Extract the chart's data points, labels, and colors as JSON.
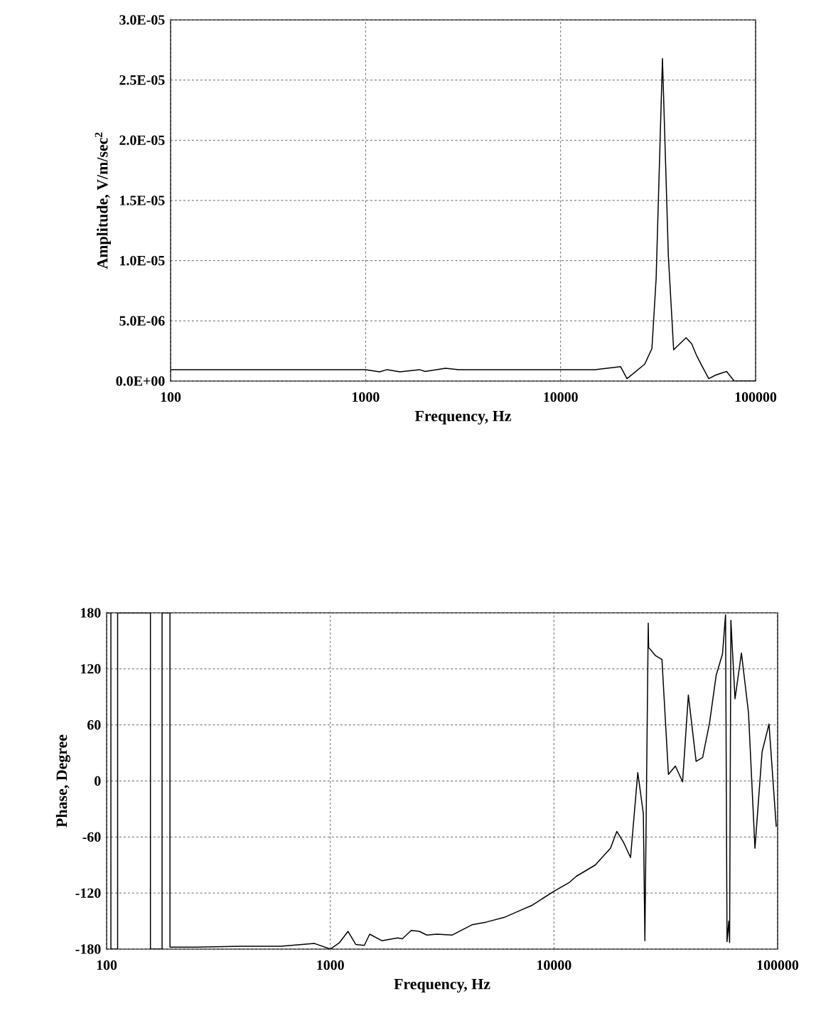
{
  "chart_data": [
    {
      "type": "line",
      "xlabel": "Frequency, Hz",
      "ylabel": "Amplitude, V/m/sec$^{2}$",
      "log": "x",
      "grid": true,
      "xlim": [
        100,
        100000
      ],
      "xticks": [
        100,
        1000,
        10000,
        100000
      ],
      "ylim": [
        0,
        3e-05
      ],
      "yticks": [
        {
          "value": 0,
          "label": "0.0E+00"
        },
        {
          "value": 5e-06,
          "label": "5.0E-06"
        },
        {
          "value": 1e-05,
          "label": "1.0E-05"
        },
        {
          "value": 1.5e-05,
          "label": "1.5E-05"
        },
        {
          "value": 2e-05,
          "label": "2.0E-05"
        },
        {
          "value": 2.5e-05,
          "label": "2.5E-05"
        },
        {
          "value": 3e-05,
          "label": "3.0E-05"
        }
      ],
      "series": [
        {
          "color": "#000000",
          "x": [
            100,
            500,
            1000,
            1180,
            1290,
            1500,
            1890,
            2020,
            2570,
            3000,
            5000,
            10000,
            15000,
            20300,
            21900,
            27000,
            29400,
            30900,
            33300,
            35700,
            38000,
            44000,
            47000,
            49900,
            53300,
            57500,
            62500,
            71000,
            77700,
            100000
          ],
          "values": [
            9.5e-07,
            9.5e-07,
            9.5e-07,
            7.7e-07,
            9.5e-07,
            7.7e-07,
            9.5e-07,
            8e-07,
            1.06e-06,
            9.5e-07,
            9.5e-07,
            9.5e-07,
            9.5e-07,
            1.2e-06,
            2e-07,
            1.4e-06,
            2.7e-06,
            8.5e-06,
            2.68e-05,
            1.04e-05,
            2.6e-06,
            3.6e-06,
            3.1e-06,
            2.1e-06,
            1.2e-06,
            2e-07,
            5e-07,
            8e-07,
            0,
            0
          ]
        }
      ]
    },
    {
      "type": "line",
      "xlabel": "Frequency, Hz",
      "ylabel": "Phase, Degree",
      "log": "x",
      "grid": true,
      "xlim": [
        100,
        100000
      ],
      "xticks": [
        100,
        1000,
        10000,
        100000
      ],
      "ylim": [
        -180,
        180
      ],
      "yticks": [
        -180,
        -120,
        -60,
        0,
        60,
        120,
        180
      ],
      "series": [
        {
          "color": "#000000",
          "x": [
            100,
            104.5,
            104.5,
            112,
            112,
            157,
            157,
            177,
            177,
            192,
            192,
            250,
            400,
            600,
            850,
            1000,
            1100,
            1200,
            1300,
            1420,
            1500,
            1700,
            2000,
            2100,
            2300,
            2500,
            2700,
            3000,
            3500,
            4300,
            5000,
            6000,
            7000,
            8000,
            10000,
            11660,
            12600,
            15300,
            17900,
            19100,
            20500,
            22000,
            23700,
            25100,
            25500,
            26400,
            26500,
            28500,
            30400,
            32500,
            34900,
            37600,
            39900,
            43200,
            46200,
            49600,
            53100,
            56700,
            58500,
            59400,
            60500,
            61000,
            61800,
            64500,
            68900,
            74100,
            79200,
            85200,
            91500,
            98600
          ],
          "values": [
            180,
            180,
            -180,
            -180,
            180,
            180,
            -180,
            -180,
            180,
            180,
            -178,
            -178,
            -177,
            -177,
            -174,
            -180,
            -173,
            -161,
            -175,
            -176,
            -164,
            -171,
            -168,
            -169,
            -160,
            -161,
            -165,
            -164,
            -165,
            -154,
            -151,
            -146,
            -139,
            -133,
            -118,
            -109,
            -102,
            -90,
            -72,
            -54,
            -66,
            -82,
            9,
            -35,
            -171,
            169,
            143,
            134,
            130,
            7,
            16,
            -1,
            92,
            21,
            25,
            62,
            113,
            136,
            178,
            -172,
            -150,
            -173,
            172,
            88,
            137,
            73,
            -72,
            31,
            61,
            -49
          ]
        }
      ]
    }
  ]
}
